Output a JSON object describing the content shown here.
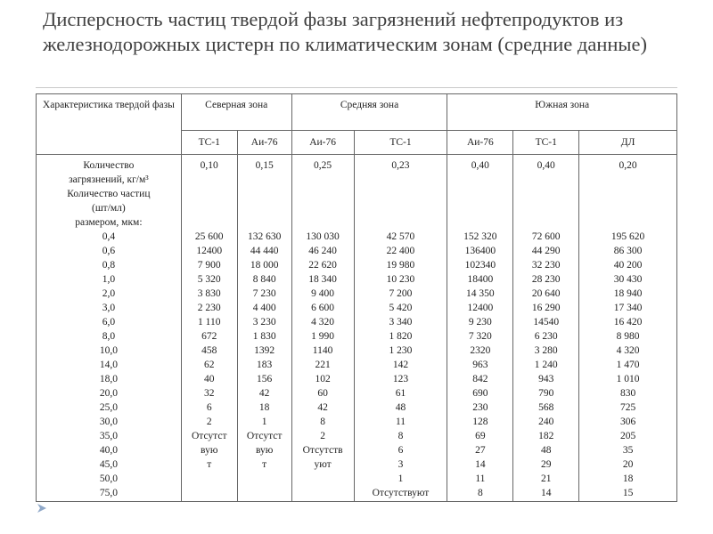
{
  "title": "Дисперсность частиц твердой фазы загрязнений нефтепродуктов из железнодорожных цистерн по климатическим зонам (средние данные)",
  "table": {
    "corner_header": "Характеристика твердой фазы",
    "zones": [
      "Северная зона",
      "Средняя зона",
      "Южная зона"
    ],
    "fuels": [
      "ТС-1",
      "Аи-76",
      "Аи-76",
      "ТС-1",
      "Аи-76",
      "ТС-1",
      "ДЛ"
    ],
    "characteristic_lines": [
      "Количество",
      "загрязнений, кг/м³",
      "Количество частиц",
      "(шт/мл)",
      "размером, мкм:",
      "0,4",
      "0,6",
      "0,8",
      "1,0",
      "2,0",
      "3,0",
      "6,0",
      "8,0",
      "10,0",
      "14,0",
      "18,0",
      "20,0",
      "25,0",
      "30,0",
      "35,0",
      "40,0",
      "45,0",
      "50,0",
      "75,0"
    ],
    "columns": [
      {
        "amount": "0,10",
        "values": [
          "25 600",
          "12400",
          "7 900",
          "5 320",
          "3 830",
          "2 230",
          "1 110",
          "672",
          "458",
          "62",
          "40",
          "32",
          "6",
          "2",
          "Отсутст",
          "вую",
          "т"
        ]
      },
      {
        "amount": "0,15",
        "values": [
          "132 630",
          "44 440",
          "18 000",
          "8 840",
          "7 230",
          "4 400",
          "3 230",
          "1 830",
          "1392",
          "183",
          "156",
          "42",
          "18",
          "1",
          "Отсутст",
          "вую",
          "т"
        ]
      },
      {
        "amount": "0,25",
        "values": [
          "130 030",
          "46 240",
          "22 620",
          "18 340",
          "9 400",
          "6 600",
          "4 320",
          "1 990",
          "1140",
          "221",
          "102",
          "60",
          "42",
          "8",
          "2",
          "Отсутств",
          "уют"
        ]
      },
      {
        "amount": "0,23",
        "values": [
          "42 570",
          "22 400",
          "19 980",
          "10 230",
          "7 200",
          "5 420",
          "3 340",
          "1 820",
          "1 230",
          "142",
          "123",
          "61",
          "48",
          "11",
          "8",
          "6",
          "3",
          "1",
          "Отсутствуют"
        ]
      },
      {
        "amount": "0,40",
        "values": [
          "152 320",
          "136400",
          "102340",
          "18400",
          "14 350",
          "12400",
          "9 230",
          "7 320",
          "2320",
          "963",
          "842",
          "690",
          "230",
          "128",
          "69",
          "27",
          "14",
          "11",
          "8"
        ]
      },
      {
        "amount": "0,40",
        "values": [
          "72 600",
          "44 290",
          "32 230",
          "28 230",
          "20 640",
          "16 290",
          "14540",
          "6 230",
          "3 280",
          "1 240",
          "943",
          "790",
          "568",
          "240",
          "182",
          "48",
          "29",
          "21",
          "14"
        ]
      },
      {
        "amount": "0,20",
        "values": [
          "195 620",
          "86 300",
          "40 200",
          "30 430",
          "18 940",
          "17 340",
          "16 420",
          "8 980",
          "4 320",
          "1 470",
          "1 010",
          "830",
          "725",
          "306",
          "205",
          "35",
          "20",
          "18",
          "15"
        ]
      }
    ]
  },
  "icons": {
    "nav": "triangle-arrow-icon"
  },
  "colors": {
    "title": "#3f3f3f",
    "border": "#666666",
    "arrow": "#8fa8c8"
  }
}
